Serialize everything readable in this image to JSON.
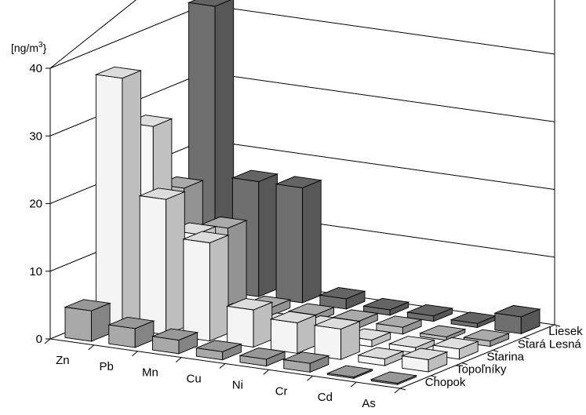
{
  "chart_data": {
    "type": "bar3d",
    "unit_label": "[ng/m",
    "unit_sup": "3",
    "unit_close": "}",
    "categories": [
      "Zn",
      "Pb",
      "Mn",
      "Cu",
      "Ni",
      "Cr",
      "Cd",
      "As"
    ],
    "series": [
      {
        "name": "Chopok",
        "color": "#a9a9a9",
        "values": [
          4.5,
          2.8,
          2.0,
          1.2,
          1.0,
          1.3,
          0.2,
          0.2
        ]
      },
      {
        "name": "Topoľníky",
        "color": "#f4f4f4",
        "values": [
          37,
          20,
          14.5,
          5.5,
          4.5,
          4.5,
          1.0,
          1.8
        ]
      },
      {
        "name": "Starina",
        "color": "#f8f8f8",
        "values": [
          28,
          13,
          2.0,
          1.5,
          2.0,
          1.0,
          0.8,
          1.5
        ]
      },
      {
        "name": "Stará Lesná",
        "color": "#bdbdbd",
        "values": [
          17,
          12,
          1.2,
          1.0,
          1.0,
          1.0,
          0.5,
          0.8
        ]
      },
      {
        "name": "Liesek",
        "color": "#6f6f6f",
        "values": [
          42,
          17,
          17,
          1.5,
          0.8,
          0.8,
          0.6,
          2.5
        ]
      }
    ],
    "y_ticks": [
      "0",
      "10",
      "20",
      "30",
      "40"
    ],
    "ylim": [
      0,
      40
    ],
    "grid": true
  }
}
